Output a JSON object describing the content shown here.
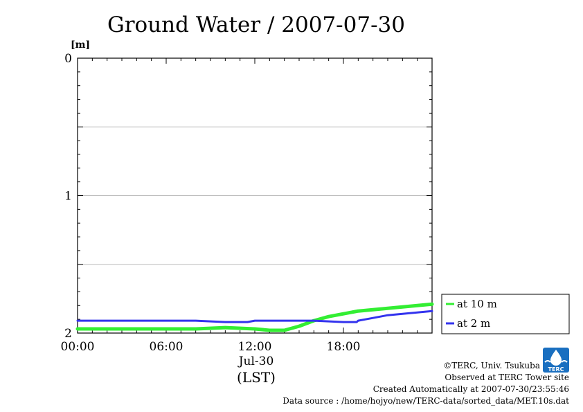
{
  "chart_data": {
    "type": "line",
    "title": "Ground Water / 2007-07-30",
    "ylabel": "[m]",
    "xlabel": "(LST)",
    "ylim": [
      2,
      0
    ],
    "y_inverted": true,
    "xlim": [
      0,
      24
    ],
    "y_ticks": [
      "0",
      "1",
      "2"
    ],
    "y_tick_values": [
      0,
      1,
      2
    ],
    "y_grid": [
      0.5,
      1,
      1.5
    ],
    "x_ticks": [
      "00:00",
      "06:00",
      "12:00",
      "18:00"
    ],
    "x_tick_values": [
      0,
      6,
      12,
      18
    ],
    "date_label": "Jul-30",
    "legend_position": "right",
    "series": [
      {
        "name": "at 10 m",
        "color": "#33ee33",
        "x": [
          0,
          2,
          4,
          6,
          8,
          10,
          12,
          13,
          14,
          15,
          16,
          17,
          18,
          19,
          20,
          21,
          22,
          23,
          24
        ],
        "y": [
          1.97,
          1.97,
          1.97,
          1.97,
          1.97,
          1.96,
          1.97,
          1.98,
          1.98,
          1.95,
          1.91,
          1.88,
          1.86,
          1.84,
          1.83,
          1.82,
          1.81,
          1.8,
          1.79
        ]
      },
      {
        "name": "at 2 m",
        "color": "#3333ee",
        "x": [
          0,
          4,
          8,
          10,
          11.5,
          12,
          16,
          18,
          18.9,
          19,
          20,
          21,
          22,
          23,
          24
        ],
        "y": [
          1.91,
          1.91,
          1.91,
          1.92,
          1.92,
          1.91,
          1.91,
          1.92,
          1.92,
          1.91,
          1.89,
          1.87,
          1.86,
          1.85,
          1.84
        ]
      }
    ]
  },
  "footer": {
    "copyright": "©TERC, Univ. Tsukuba",
    "observed": "Observed at TERC Tower site",
    "created": "Created Automatically at 2007-07-30/23:55:46",
    "source": "Data source : /home/hojyo/new/TERC-data/sorted_data/MET.10s.dat"
  },
  "logo": {
    "text": "TERC",
    "color": "#1a6fc0"
  }
}
